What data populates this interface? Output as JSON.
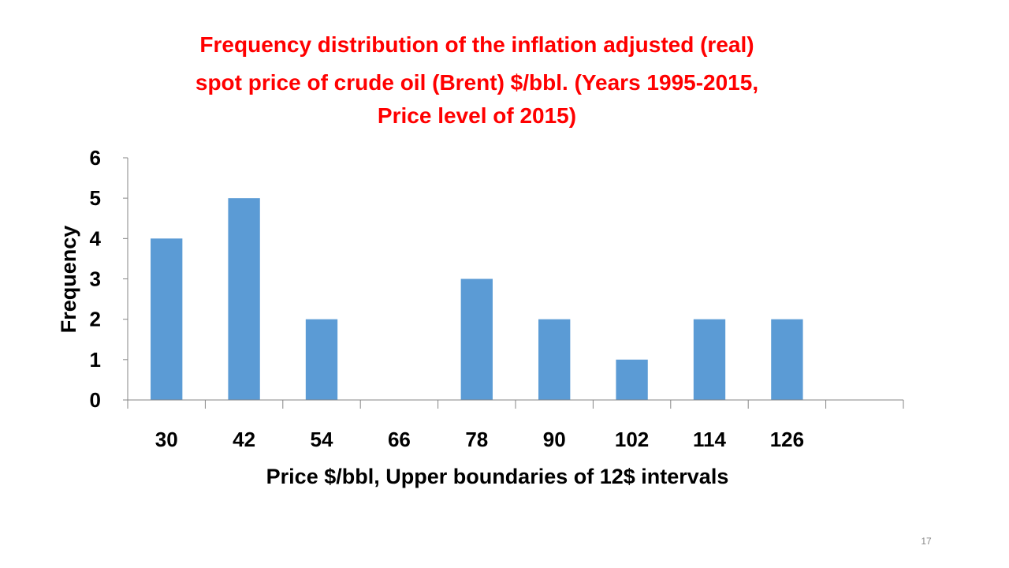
{
  "chart_data": {
    "type": "bar",
    "title_lines": [
      "Frequency distribution of the inflation adjusted (real)",
      "spot price of crude oil (Brent) $/bbl. (Years 1995-2015,",
      "Price level of 2015)"
    ],
    "categories": [
      "30",
      "42",
      "54",
      "66",
      "78",
      "90",
      "102",
      "114",
      "126",
      ""
    ],
    "values": [
      4,
      5,
      2,
      0,
      3,
      2,
      1,
      2,
      2,
      0
    ],
    "xlabel": "Price $/bbl, Upper boundaries of 12$ intervals",
    "ylabel": "Frequency",
    "ylim": [
      0,
      6
    ],
    "yticks": [
      "0",
      "1",
      "2",
      "3",
      "4",
      "5",
      "6"
    ],
    "grid": false,
    "legend": "none",
    "bar_color": "#5b9bd5"
  },
  "slide": {
    "title_color": "#ff0000",
    "page_number": "17"
  }
}
